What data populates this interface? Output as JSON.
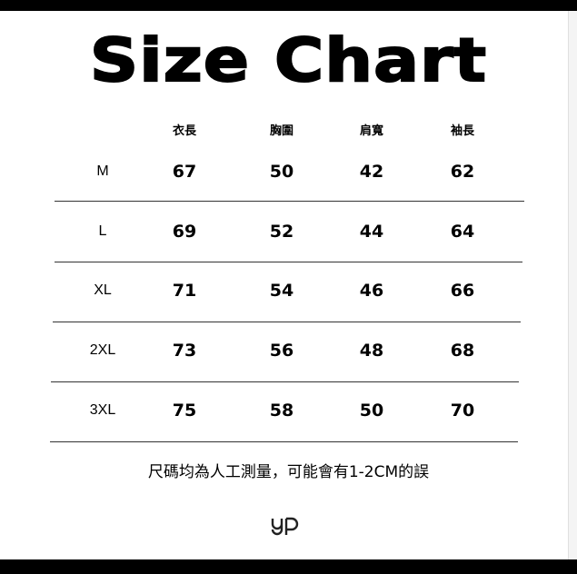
{
  "title": "Size Chart",
  "columns": [
    "衣長",
    "胸圍",
    "肩寬",
    "袖長"
  ],
  "rows": [
    {
      "size": "M",
      "values": [
        "67",
        "50",
        "42",
        "62"
      ]
    },
    {
      "size": "L",
      "values": [
        "69",
        "52",
        "44",
        "64"
      ]
    },
    {
      "size": "XL",
      "values": [
        "71",
        "54",
        "46",
        "66"
      ]
    },
    {
      "size": "2XL",
      "values": [
        "73",
        "56",
        "48",
        "68"
      ]
    },
    {
      "size": "3XL",
      "values": [
        "75",
        "58",
        "50",
        "70"
      ]
    }
  ],
  "note": "尺碼均為人工測量，可能會有1-2CM的誤",
  "logo": "yp"
}
